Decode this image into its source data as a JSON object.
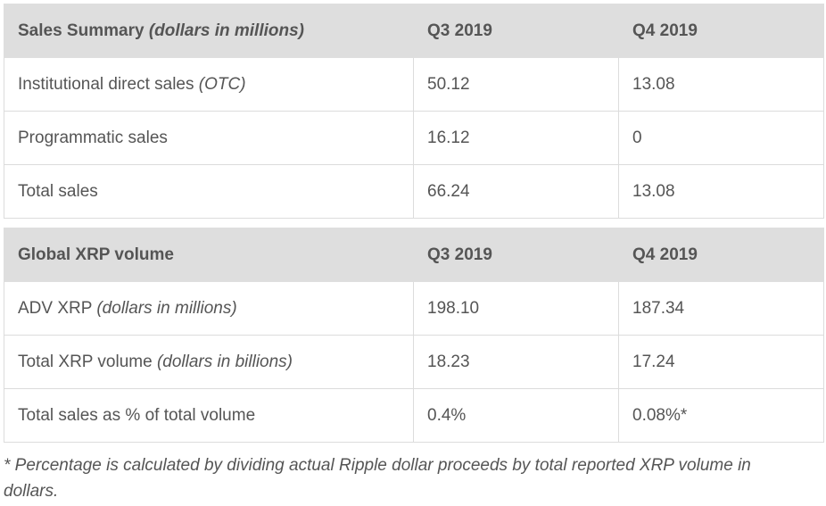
{
  "sales_summary": {
    "header": {
      "label": "Sales Summary",
      "label_note": "(dollars in millions)",
      "q3": "Q3 2019",
      "q4": "Q4 2019"
    },
    "rows": [
      {
        "label": "Institutional direct sales",
        "note": "(OTC)",
        "q3": "50.12",
        "q4": "13.08"
      },
      {
        "label": "Programmatic sales",
        "note": "",
        "q3": "16.12",
        "q4": "0"
      },
      {
        "label": "Total sales",
        "note": "",
        "q3": "66.24",
        "q4": "13.08"
      }
    ]
  },
  "global_volume": {
    "header": {
      "label": "Global XRP volume",
      "q3": "Q3 2019",
      "q4": "Q4 2019"
    },
    "rows": [
      {
        "label": "ADV XRP",
        "note": "(dollars in millions)",
        "q3": "198.10",
        "q4": "187.34"
      },
      {
        "label": "Total XRP volume",
        "note": "(dollars in billions)",
        "q3": "18.23",
        "q4": "17.24"
      },
      {
        "label": "Total sales as % of total volume",
        "note": "",
        "q3": "0.4%",
        "q4": "0.08%*"
      }
    ]
  },
  "footnote": "* Percentage is calculated by dividing actual Ripple dollar proceeds by total reported XRP volume in dollars."
}
